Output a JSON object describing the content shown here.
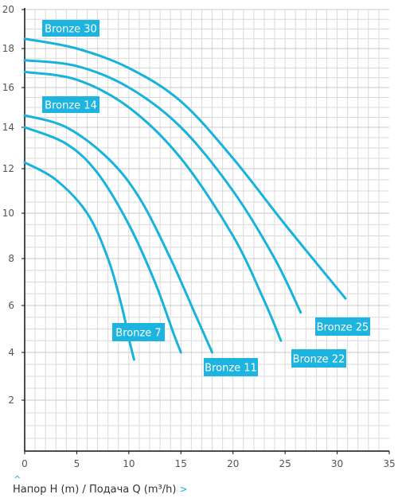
{
  "footer": {
    "label": "Напор H (m) / Подача Q (m³/h)",
    "up_arrow": "^",
    "right_arrow": ">"
  },
  "colors": {
    "curve": "#17b3dd",
    "label_bg": "#1eb4e0",
    "grid": "#d9d9d9",
    "axis": "#111111"
  },
  "chart_data": {
    "type": "line",
    "xlim": [
      0,
      35
    ],
    "ylim": [
      0,
      20
    ],
    "y_scale": "log-like (head, m)",
    "x_ticks": [
      0,
      5,
      10,
      15,
      20,
      25,
      30,
      35
    ],
    "y_ticks": [
      2,
      4,
      6,
      8,
      10,
      12,
      14,
      16,
      18,
      20
    ],
    "grid": true,
    "series": [
      {
        "name": "Bronze 30",
        "x": [
          0,
          5,
          10,
          15,
          20,
          25,
          30.8
        ],
        "y": [
          18.5,
          18.0,
          17.0,
          15.3,
          12.5,
          9.5,
          6.3
        ]
      },
      {
        "name": "Bronze 25",
        "x": [
          0,
          5,
          10,
          15,
          20,
          24,
          26.5
        ],
        "y": [
          17.4,
          17.1,
          16.0,
          14.0,
          11.0,
          8.0,
          5.7
        ]
      },
      {
        "name": "Bronze 22",
        "x": [
          0,
          5,
          10,
          15,
          20,
          23,
          24.6
        ],
        "y": [
          16.8,
          16.4,
          15.0,
          12.5,
          9.0,
          6.2,
          4.5
        ]
      },
      {
        "name": "Bronze 14",
        "x": [
          0,
          4,
          8,
          11,
          14,
          16.5,
          18.0
        ],
        "y": [
          14.6,
          14.0,
          12.5,
          10.7,
          8.0,
          5.5,
          4.0
        ]
      },
      {
        "name": "Bronze 11",
        "x": [
          0,
          4,
          7,
          10,
          12.5,
          14.3,
          15.0
        ],
        "y": [
          14.0,
          13.2,
          11.8,
          9.5,
          7.0,
          4.8,
          4.0
        ]
      },
      {
        "name": "Bronze 7",
        "x": [
          0,
          3,
          6,
          8,
          9.3,
          10.0,
          10.5
        ],
        "y": [
          12.3,
          11.5,
          10.0,
          8.0,
          6.0,
          4.6,
          3.7
        ]
      }
    ],
    "labels": [
      "Bronze 30",
      "Bronze 14",
      "Bronze 7",
      "Bronze 11",
      "Bronze 22",
      "Bronze 25"
    ]
  }
}
